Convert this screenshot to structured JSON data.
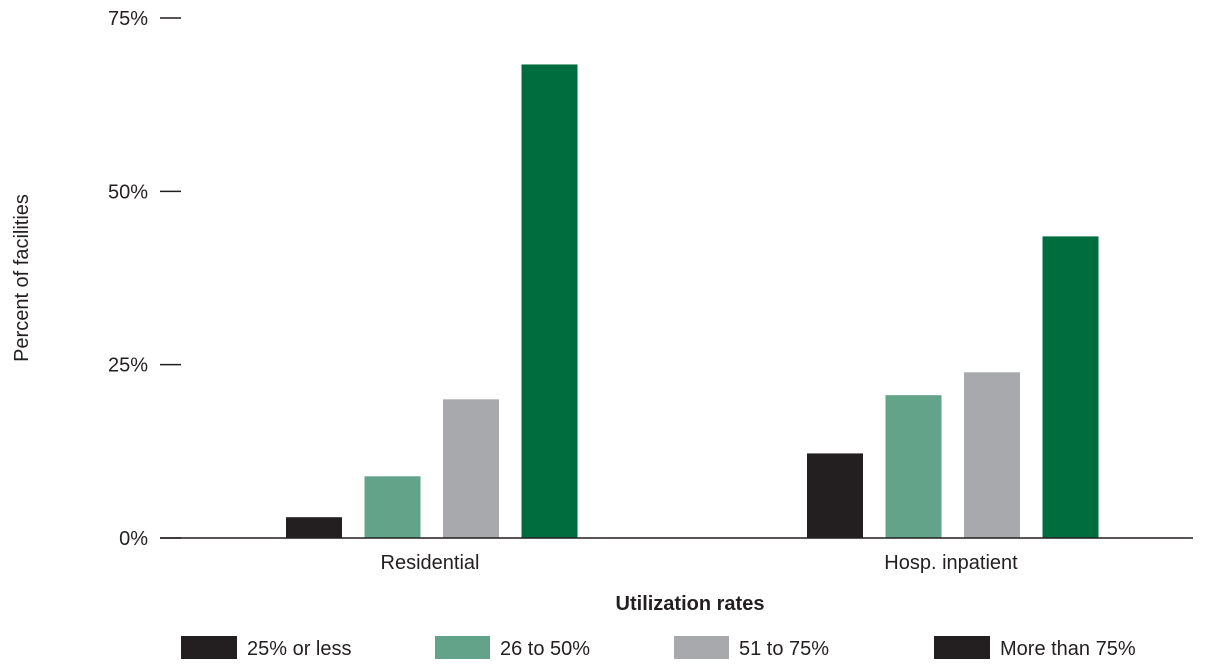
{
  "chart_data": {
    "type": "bar",
    "categories": [
      "Residential",
      "Hosp. inpatient"
    ],
    "series": [
      {
        "name": "25% or less",
        "values": [
          3,
          12.2
        ],
        "color": "#231f20"
      },
      {
        "name": "26 to 50%",
        "values": [
          8.9,
          20.6
        ],
        "color": "#63a38a"
      },
      {
        "name": "51 to 75%",
        "values": [
          20,
          23.9
        ],
        "color": "#a7a9ac"
      },
      {
        "name": "More than 75%",
        "values": [
          68.3,
          43.5
        ],
        "color": "#006d3f"
      }
    ],
    "ylabel": "Percent of facilities",
    "xlabel": "Utilization rates",
    "ylim": [
      0,
      75
    ],
    "yticks": [
      0,
      25,
      50,
      75
    ],
    "ytick_labels": [
      "0%",
      "25%",
      "50%",
      "75%"
    ],
    "grid": false,
    "legend_position": "bottom",
    "legend_colors": [
      "#231f20",
      "#63a38a",
      "#a7a9ac",
      "#231f20"
    ]
  }
}
